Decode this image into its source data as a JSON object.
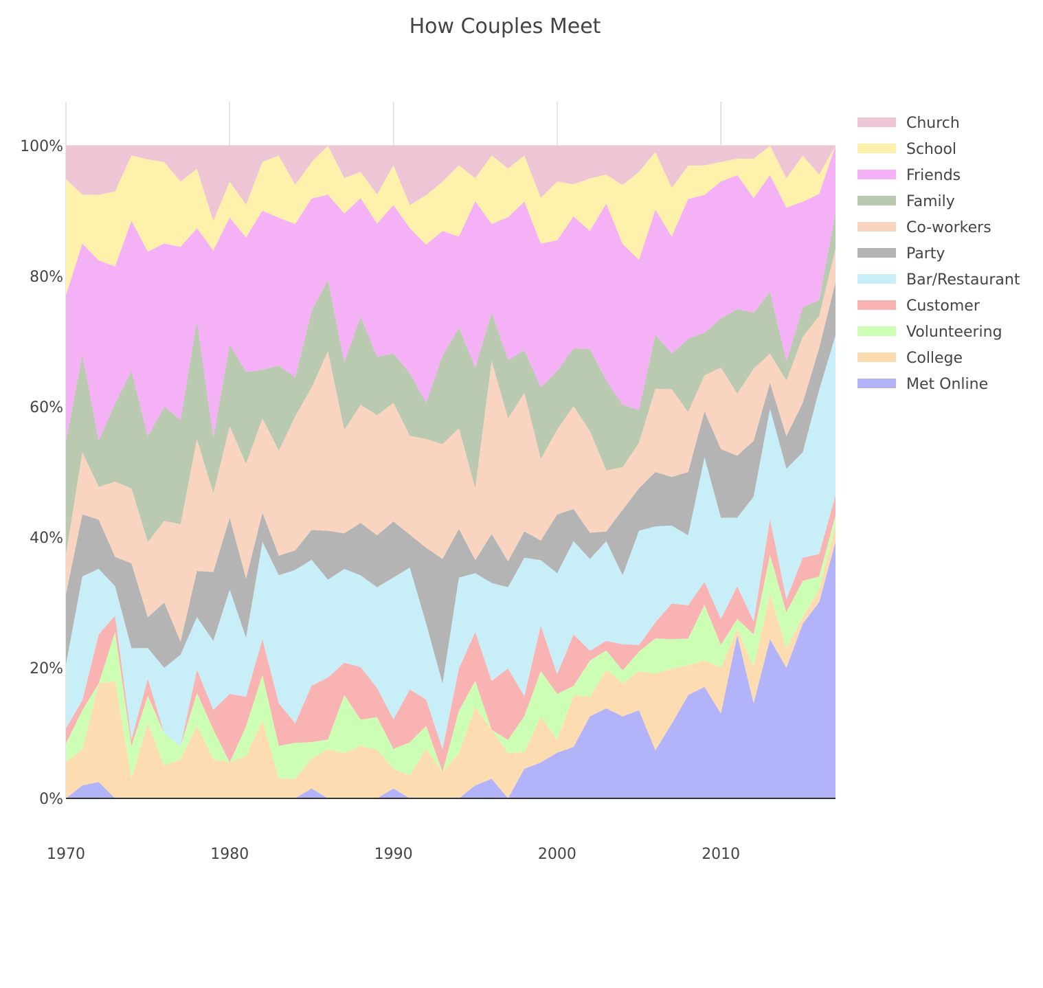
{
  "chart_data": {
    "type": "area",
    "stacked": true,
    "normalized": true,
    "title": "How Couples Meet",
    "xlabel": "",
    "ylabel": "",
    "xlim": [
      1970,
      2017
    ],
    "ylim": [
      0,
      100
    ],
    "x_ticks": [
      1970,
      1980,
      1990,
      2000,
      2010
    ],
    "y_ticks": [
      0,
      20,
      40,
      60,
      80,
      100
    ],
    "y_tick_labels": [
      "0%",
      "20%",
      "40%",
      "60%",
      "80%",
      "100%"
    ],
    "grid": true,
    "legend_position": "right",
    "x": [
      1970,
      1971,
      1972,
      1973,
      1974,
      1975,
      1976,
      1977,
      1978,
      1979,
      1980,
      1981,
      1982,
      1983,
      1984,
      1985,
      1986,
      1987,
      1988,
      1989,
      1990,
      1991,
      1992,
      1993,
      1994,
      1995,
      1996,
      1997,
      1998,
      1999,
      2000,
      2001,
      2002,
      2003,
      2004,
      2005,
      2006,
      2007,
      2008,
      2009,
      2010,
      2011,
      2012,
      2013,
      2014,
      2015,
      2016,
      2017
    ],
    "series": [
      {
        "name": "Met Online",
        "color": "#b3b3fa",
        "values": [
          0,
          2,
          2.5,
          0,
          0,
          0,
          0,
          0,
          0,
          0,
          0,
          0,
          0,
          0,
          0,
          1.5,
          0,
          0,
          0,
          0,
          1.5,
          0,
          0,
          0,
          0,
          2,
          3,
          0,
          4.5,
          5.5,
          7,
          8,
          12.5,
          14,
          12.5,
          13.5,
          7.5,
          11.5,
          15.5,
          17,
          13,
          25,
          14.5,
          24.5,
          20,
          26.5,
          30.5,
          38.5
        ]
      },
      {
        "name": "College",
        "color": "#fcdcb0",
        "values": [
          6,
          5.5,
          15,
          18,
          3,
          11,
          5,
          6,
          11,
          6,
          5.5,
          6.5,
          12,
          3,
          3,
          4.5,
          7.5,
          7,
          8,
          7.5,
          3,
          3.5,
          7.5,
          4,
          7,
          12,
          7.5,
          7,
          2.5,
          7,
          2,
          8,
          3,
          6,
          5,
          6,
          12,
          8.5,
          4.5,
          4,
          7,
          1,
          5.5,
          7,
          3,
          1,
          2,
          2.5
        ]
      },
      {
        "name": "Volunteering",
        "color": "#ccffb3",
        "values": [
          3,
          6,
          0,
          7.5,
          5,
          4,
          5,
          2,
          5,
          4.5,
          0,
          4.5,
          7,
          5,
          5.5,
          2.5,
          1.5,
          9,
          4,
          5,
          3,
          5,
          3.5,
          0,
          6.5,
          4,
          0,
          2,
          5.5,
          7,
          7,
          1.5,
          5.5,
          3,
          2,
          3,
          5.5,
          4.5,
          4,
          8.5,
          3.5,
          1.5,
          5,
          6,
          5.5,
          5.5,
          2,
          1.5
        ]
      },
      {
        "name": "Customer",
        "color": "#fab3b3",
        "values": [
          2.5,
          1.5,
          7.5,
          2.5,
          1,
          2.5,
          0,
          0,
          3.5,
          3,
          10.5,
          4.5,
          5.5,
          6.5,
          3,
          8.5,
          9.5,
          5,
          8,
          4.5,
          4.5,
          8,
          4,
          3.5,
          6.5,
          7.5,
          7.5,
          11,
          3,
          7,
          3,
          8,
          1.5,
          1.5,
          4,
          1,
          2.5,
          5.5,
          5,
          3.5,
          4,
          5,
          2,
          5.5,
          2,
          3.5,
          3.5,
          3
        ]
      },
      {
        "name": "Bar/Restaurant",
        "color": "#c8eef8",
        "values": [
          10.5,
          19,
          10,
          4.5,
          14,
          4.5,
          10,
          14,
          8,
          10.5,
          16,
          9,
          15,
          19.5,
          23.5,
          19,
          15,
          14.5,
          14,
          15.5,
          21.5,
          18.5,
          11.5,
          10,
          14,
          9,
          15,
          12.5,
          21,
          10,
          15.5,
          14.5,
          14,
          15.5,
          10.5,
          17.5,
          15,
          12,
          10.5,
          19,
          15.5,
          10.5,
          19,
          17,
          20,
          16,
          25.5,
          24
        ]
      },
      {
        "name": "Party",
        "color": "#b4b4b4",
        "values": [
          11.5,
          9.5,
          7.5,
          4.5,
          13,
          4.5,
          10,
          2,
          7,
          10.5,
          11,
          9,
          4.5,
          3,
          3,
          4.5,
          7.5,
          5.5,
          8,
          8,
          8.5,
          5,
          11.5,
          19,
          7.5,
          2,
          7.5,
          4,
          4,
          3,
          9,
          5,
          4,
          1.5,
          10,
          6.5,
          8.5,
          7.5,
          9.5,
          7,
          10.5,
          9.5,
          8.5,
          4,
          5,
          7.5,
          6.5,
          8
        ]
      },
      {
        "name": "Co-workers",
        "color": "#f8d4c1",
        "values": [
          6.5,
          9.5,
          5,
          11.5,
          11.5,
          11,
          12.5,
          18,
          20,
          12,
          14,
          17.5,
          14.5,
          16,
          20.5,
          21.5,
          27.5,
          16,
          18,
          18.5,
          18,
          15,
          16.5,
          17.5,
          15.5,
          11,
          26.5,
          22,
          21,
          12.5,
          13,
          16,
          15.5,
          9.5,
          6.5,
          7,
          13,
          13.5,
          9,
          5.5,
          12.5,
          9.5,
          11,
          4.5,
          8.5,
          10,
          5,
          5
        ]
      },
      {
        "name": "Family",
        "color": "#bacab0",
        "values": [
          18.5,
          15,
          7,
          12,
          18,
          15.5,
          17.5,
          16,
          18,
          8.5,
          12.5,
          14,
          7.5,
          13,
          6,
          11.5,
          11,
          10.5,
          13.5,
          9,
          7.5,
          9.5,
          5.5,
          13.5,
          15.5,
          18.5,
          7.5,
          9,
          6.5,
          11,
          9,
          9,
          12.5,
          14,
          9.5,
          5,
          8.5,
          5.5,
          11,
          6.5,
          7.5,
          13,
          8.5,
          9.5,
          3,
          4.5,
          2.5,
          5.5
        ]
      },
      {
        "name": "Friends",
        "color": "#f5b1f5",
        "values": [
          24,
          17,
          27.5,
          21,
          23,
          27,
          25,
          26.5,
          14,
          28.5,
          19.5,
          20.5,
          24.5,
          22.5,
          23.5,
          17,
          13,
          23,
          18,
          20.5,
          22.5,
          22,
          24,
          19,
          14,
          25.5,
          13.5,
          22,
          22.5,
          22,
          20,
          20.5,
          18,
          27.5,
          24.5,
          23,
          19.5,
          18,
          21,
          21,
          21,
          20.5,
          17.5,
          18,
          23.5,
          16,
          16.5,
          10
        ]
      },
      {
        "name": "School",
        "color": "#fdf1ab",
        "values": [
          19,
          7.5,
          10,
          11.5,
          10,
          13.5,
          12.5,
          10,
          9,
          4.5,
          5.5,
          5,
          7.5,
          9.5,
          6,
          5.5,
          7.5,
          5.5,
          4,
          4.5,
          6,
          3.5,
          7.5,
          7.5,
          11,
          3.5,
          10.5,
          7.5,
          7,
          7,
          9,
          5,
          8,
          4.5,
          9,
          13.5,
          9,
          7.5,
          5,
          4.5,
          3,
          2.5,
          6,
          4.5,
          4.5,
          7,
          3,
          0
        ]
      },
      {
        "name": "Church",
        "color": "#eec5d5",
        "values": [
          5.5,
          7.5,
          7.5,
          7,
          1.5,
          2,
          2.5,
          5.5,
          3.5,
          11.5,
          5.5,
          9,
          2.5,
          1.5,
          6,
          2.5,
          0,
          5,
          4,
          7.5,
          3,
          9,
          7.5,
          5.5,
          3,
          5,
          1.5,
          3.5,
          1.5,
          8,
          5.5,
          6,
          5,
          4.5,
          6,
          4,
          1,
          6.5,
          3,
          3,
          2.5,
          2,
          2,
          0,
          5,
          1.5,
          4.5,
          0
        ]
      }
    ]
  }
}
